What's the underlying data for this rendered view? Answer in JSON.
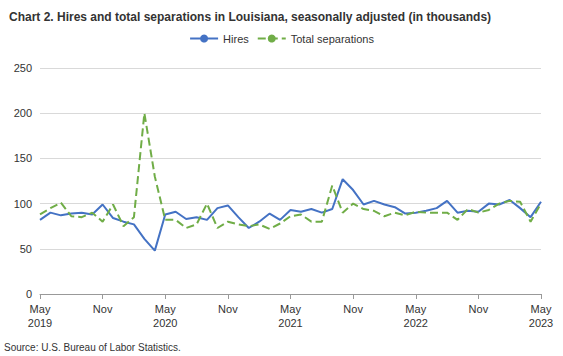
{
  "chart_data": {
    "type": "line",
    "title": "Chart 2. Hires and total separations in Louisiana, seasonally adjusted (in thousands)",
    "source": "Source: U.S. Bureau of Labor Statistics.",
    "categories": [
      "May\n2019",
      null,
      null,
      null,
      null,
      null,
      "Nov",
      null,
      null,
      null,
      null,
      null,
      "May\n2020",
      null,
      null,
      null,
      null,
      null,
      "Nov",
      null,
      null,
      null,
      null,
      null,
      "May\n2021",
      null,
      null,
      null,
      null,
      null,
      "Nov",
      null,
      null,
      null,
      null,
      null,
      "May\n2022",
      null,
      null,
      null,
      null,
      null,
      "Nov",
      null,
      null,
      null,
      null,
      null,
      "May\n2023"
    ],
    "series": [
      {
        "name": "Hires",
        "color": "#4472c4",
        "line_style": "solid",
        "values": [
          82,
          90,
          87,
          89,
          90,
          88,
          99,
          84,
          80,
          77,
          61,
          48,
          88,
          91,
          83,
          85,
          82,
          95,
          98,
          85,
          73,
          80,
          89,
          82,
          93,
          91,
          94,
          90,
          94,
          127,
          115,
          99,
          103,
          99,
          96,
          89,
          90,
          92,
          95,
          103,
          90,
          92,
          91,
          100,
          99,
          104,
          95,
          85,
          102
        ]
      },
      {
        "name": "Total separations",
        "color": "#70ad47",
        "line_style": "dashed",
        "values": [
          88,
          95,
          101,
          86,
          85,
          90,
          80,
          99,
          75,
          85,
          200,
          130,
          82,
          82,
          73,
          77,
          100,
          73,
          80,
          77,
          75,
          77,
          72,
          78,
          86,
          88,
          80,
          80,
          120,
          90,
          100,
          94,
          92,
          86,
          90,
          87,
          91,
          90,
          90,
          90,
          82,
          94,
          90,
          93,
          100,
          103,
          102,
          80,
          100
        ]
      }
    ],
    "ylim": [
      0,
      250
    ],
    "yticks": [
      0,
      50,
      100,
      150,
      200,
      250
    ],
    "grid": true,
    "legend": "top"
  }
}
